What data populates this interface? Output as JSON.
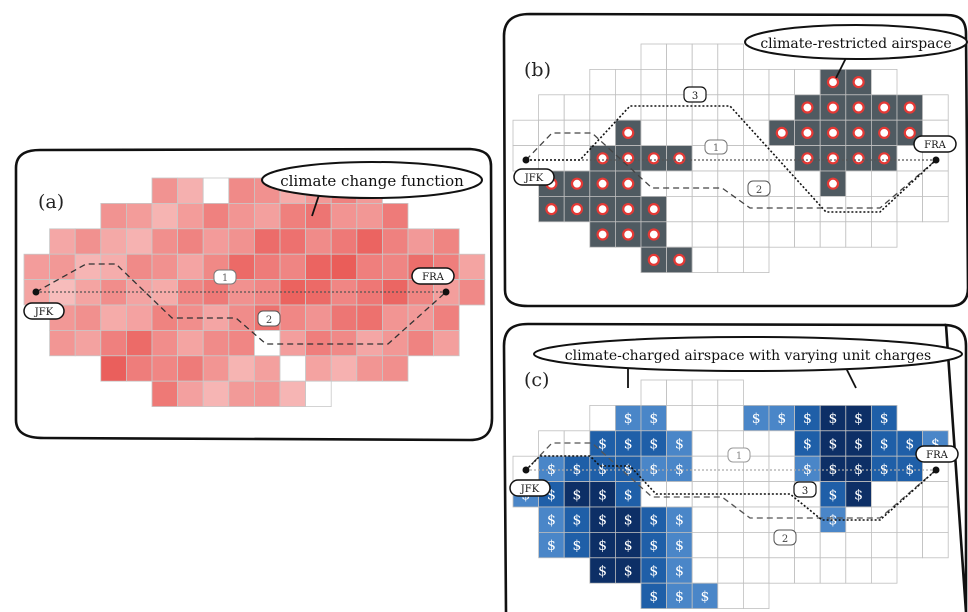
{
  "panels": {
    "a": {
      "label": "(a)",
      "callout": "climate change function",
      "origin": "JFK",
      "destination": "FRA",
      "route_labels": [
        "1",
        "2"
      ]
    },
    "b": {
      "label": "(b)",
      "callout": "climate-restricted airspace",
      "origin": "JFK",
      "destination": "FRA",
      "route_labels": [
        "1",
        "2",
        "3"
      ]
    },
    "c": {
      "label": "(c)",
      "callout": "climate-charged airspace with varying unit charges",
      "origin": "JFK",
      "destination": "FRA",
      "route_labels": [
        "1",
        "2",
        "3"
      ],
      "charge_symbol": "$"
    }
  },
  "colors": {
    "heat_low": "#fde7e7",
    "heat_high": "#e53935",
    "restricted_fill": "#4f5a61",
    "marker_ring": "#e53935",
    "charge_light": "#4a86c8",
    "charge_mid": "#1f5fa8",
    "charge_dark": "#0d2f66"
  }
}
